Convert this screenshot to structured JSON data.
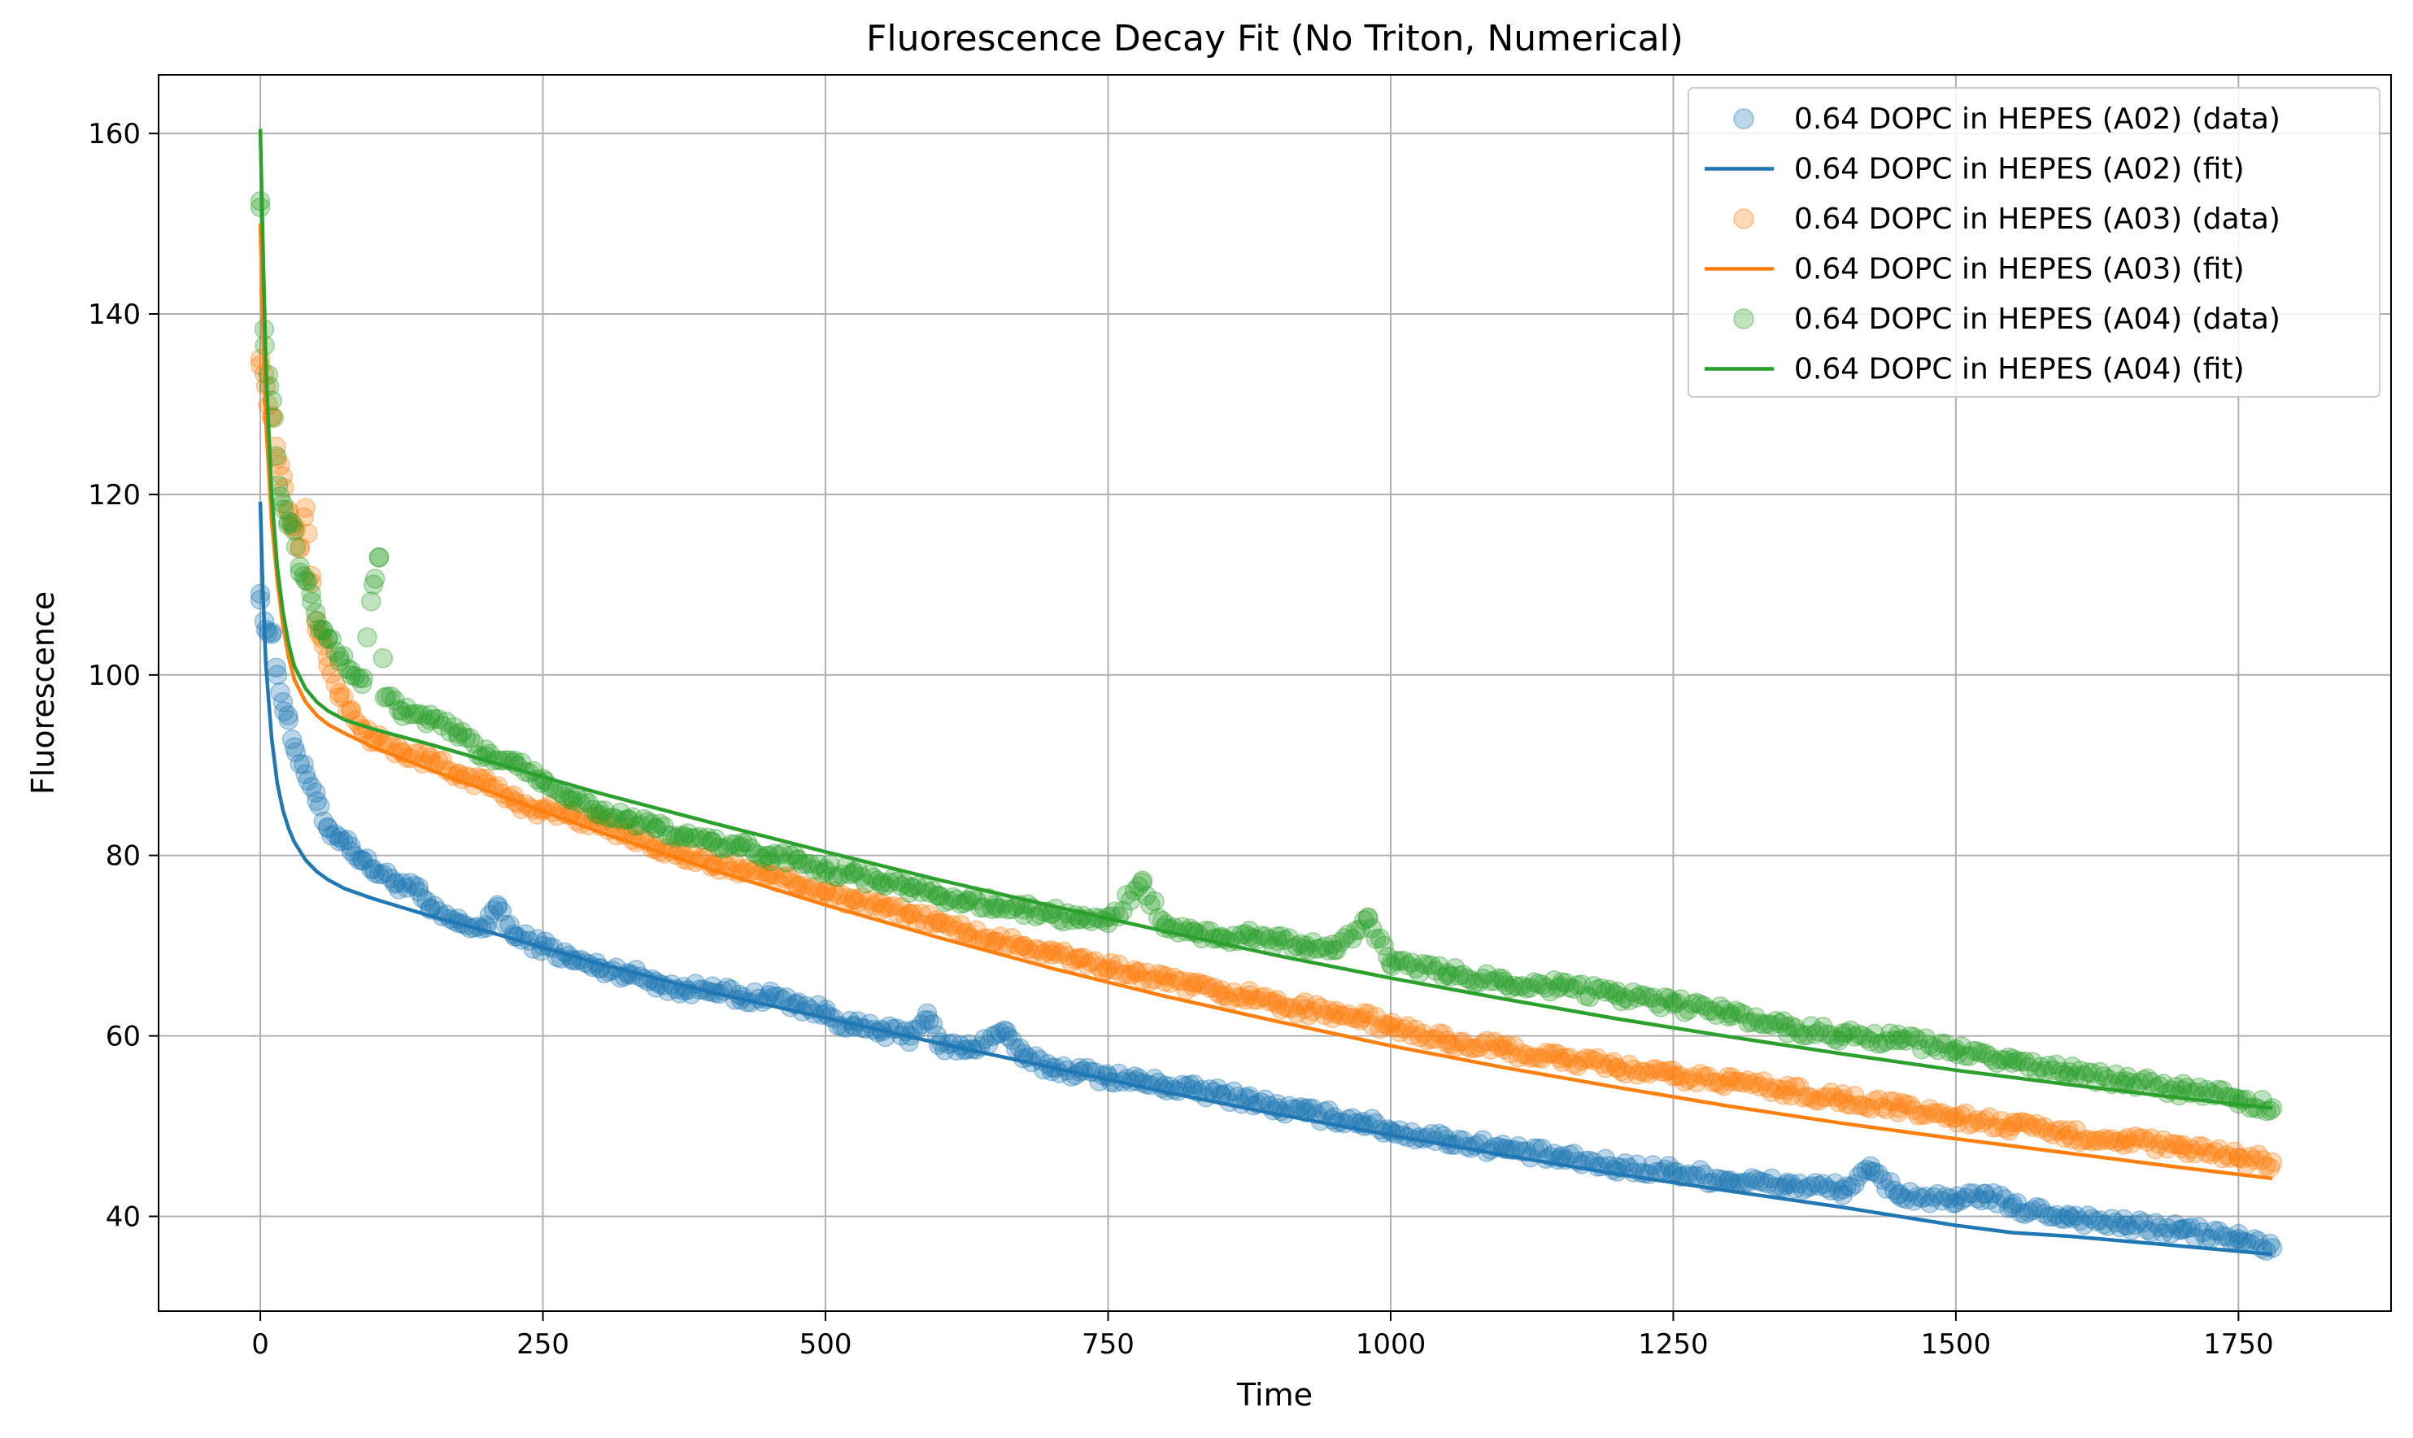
{
  "chart_data": {
    "type": "scatter",
    "title": "Fluorescence Decay Fit (No Triton, Numerical)",
    "xlabel": "Time",
    "ylabel": "Fluorescence",
    "xlim": [
      -90,
      1885
    ],
    "ylim": [
      29.5,
      166.5
    ],
    "xticks": [
      0,
      250,
      500,
      750,
      1000,
      1250,
      1500,
      1750
    ],
    "yticks": [
      40,
      60,
      80,
      100,
      120,
      140,
      160
    ],
    "grid": true,
    "legend_position": "top-right",
    "x_range": [
      0,
      1780
    ],
    "series": [
      {
        "name": "0.64 DOPC in HEPES (A02) (data)",
        "kind": "scatter",
        "color": "#1f77b4",
        "x": [
          0,
          5,
          10,
          15,
          20,
          25,
          30,
          40,
          50,
          60,
          70,
          80,
          90,
          100,
          120,
          140,
          150,
          175,
          200,
          210,
          225,
          250,
          275,
          300,
          325,
          350,
          375,
          400,
          425,
          450,
          475,
          500,
          525,
          550,
          575,
          590,
          600,
          625,
          660,
          675,
          700,
          725,
          750,
          775,
          800,
          825,
          850,
          875,
          900,
          925,
          950,
          975,
          1000,
          1050,
          1100,
          1150,
          1200,
          1250,
          1300,
          1350,
          1400,
          1425,
          1450,
          1500,
          1525,
          1550,
          1600,
          1650,
          1700,
          1750,
          1780
        ],
        "y": [
          109,
          105,
          104.5,
          100,
          97,
          95,
          92,
          89,
          86,
          83,
          82,
          81,
          79.5,
          78.5,
          77,
          76,
          74,
          72.5,
          72,
          74.5,
          71,
          70,
          68.5,
          67.5,
          67,
          66,
          65,
          65.5,
          64,
          64.5,
          63.5,
          62.5,
          61,
          60.5,
          60,
          62.5,
          59,
          58.5,
          60.5,
          57.5,
          56.5,
          56,
          55.5,
          55,
          54.5,
          54,
          53.5,
          53,
          52,
          51.5,
          51,
          50.5,
          49.5,
          48.5,
          47.5,
          46.5,
          45.5,
          45,
          44,
          43.5,
          43,
          45,
          42.5,
          41.5,
          42.5,
          41,
          40,
          39,
          38.5,
          37.5,
          36.5
        ]
      },
      {
        "name": "0.64 DOPC in HEPES (A02) (fit)",
        "kind": "line",
        "color": "#1f77b4",
        "x": [
          0,
          2,
          5,
          10,
          15,
          20,
          25,
          30,
          40,
          50,
          60,
          75,
          100,
          150,
          200,
          300,
          400,
          500,
          600,
          700,
          800,
          900,
          1000,
          1100,
          1200,
          1300,
          1400,
          1500,
          1550,
          1600,
          1700,
          1780
        ],
        "y": [
          119.2,
          110,
          101,
          93,
          88,
          85,
          83,
          81.5,
          79.5,
          78.2,
          77.3,
          76.3,
          75.2,
          73.3,
          71.6,
          68,
          64.8,
          62,
          59.2,
          56.5,
          53.8,
          51.3,
          49,
          46.8,
          44.7,
          42.8,
          41,
          39,
          38.2,
          37.8,
          36.7,
          35.8
        ]
      },
      {
        "name": "0.64 DOPC in HEPES (A03) (data)",
        "kind": "scatter",
        "color": "#ff7f0e",
        "x": [
          0,
          5,
          10,
          15,
          20,
          25,
          30,
          35,
          40,
          45,
          50,
          55,
          60,
          70,
          80,
          90,
          100,
          125,
          150,
          175,
          200,
          225,
          250,
          275,
          300,
          325,
          350,
          375,
          400,
          425,
          450,
          475,
          500,
          525,
          550,
          575,
          600,
          625,
          650,
          675,
          700,
          725,
          750,
          775,
          800,
          825,
          850,
          875,
          900,
          925,
          950,
          975,
          1000,
          1050,
          1100,
          1150,
          1200,
          1250,
          1300,
          1350,
          1400,
          1450,
          1500,
          1550,
          1600,
          1650,
          1700,
          1750,
          1780
        ],
        "y": [
          135,
          132,
          128.5,
          124,
          122,
          118,
          116.5,
          114,
          118.5,
          111,
          105,
          104,
          101,
          98,
          96,
          94,
          93,
          91.5,
          90.5,
          89,
          88,
          86,
          85,
          84.5,
          83.5,
          82.5,
          81,
          80,
          79,
          78.5,
          78,
          76.5,
          76,
          75,
          74,
          73.5,
          72.5,
          71.5,
          70.5,
          70,
          69,
          68.5,
          67.5,
          67,
          66,
          65.5,
          64.5,
          64.5,
          63.5,
          63,
          62.5,
          62,
          61,
          59.5,
          58.5,
          57.5,
          56.5,
          55.5,
          55,
          54,
          53,
          52,
          51,
          50,
          49,
          48.5,
          47.5,
          46.5,
          46
        ]
      },
      {
        "name": "0.64 DOPC in HEPES (A03) (fit)",
        "kind": "line",
        "color": "#ff7f0e",
        "x": [
          0,
          2,
          5,
          10,
          15,
          20,
          25,
          30,
          40,
          50,
          60,
          75,
          100,
          150,
          200,
          300,
          400,
          500,
          600,
          700,
          800,
          900,
          1000,
          1100,
          1200,
          1300,
          1400,
          1500,
          1600,
          1700,
          1780
        ],
        "y": [
          150,
          140,
          128,
          117,
          110.5,
          105.5,
          102,
          99.5,
          97,
          95.5,
          94.5,
          93.5,
          92,
          89.5,
          87.2,
          82.6,
          78.4,
          74.5,
          70.9,
          67.5,
          64.4,
          61.6,
          58.9,
          56.5,
          54.3,
          52.2,
          50.3,
          48.6,
          47,
          45.4,
          44.2
        ]
      },
      {
        "name": "0.64 DOPC in HEPES (A04) (data)",
        "kind": "scatter",
        "color": "#2ca02c",
        "x": [
          0,
          4,
          8,
          12,
          16,
          20,
          25,
          30,
          35,
          40,
          45,
          50,
          55,
          60,
          70,
          80,
          90,
          100,
          105,
          110,
          125,
          150,
          175,
          200,
          225,
          250,
          275,
          300,
          325,
          350,
          375,
          400,
          425,
          450,
          475,
          500,
          525,
          550,
          575,
          600,
          625,
          650,
          675,
          700,
          725,
          750,
          780,
          800,
          825,
          850,
          875,
          900,
          925,
          950,
          980,
          1000,
          1050,
          1100,
          1150,
          1200,
          1250,
          1300,
          1350,
          1400,
          1450,
          1500,
          1550,
          1600,
          1650,
          1700,
          1750,
          1780
        ],
        "y": [
          152.5,
          136.5,
          132,
          128.5,
          121,
          119,
          117,
          116,
          112,
          110.5,
          109,
          106,
          105,
          104,
          102,
          100.5,
          99,
          110,
          113,
          97.5,
          96,
          95,
          93.5,
          91,
          90.5,
          88.5,
          86.5,
          85,
          84,
          83,
          82,
          81.5,
          81,
          80,
          79.5,
          78.5,
          78,
          77,
          76.5,
          75.5,
          75,
          74.5,
          74,
          73.5,
          73,
          72.5,
          77,
          72,
          71.5,
          71,
          71,
          70.5,
          70,
          69.5,
          73,
          68,
          67,
          66,
          65.5,
          64.5,
          63.5,
          62.5,
          61,
          60,
          59.5,
          58.5,
          57,
          56,
          55,
          54,
          53,
          52
        ]
      },
      {
        "name": "0.64 DOPC in HEPES (A04) (fit)",
        "kind": "line",
        "color": "#2ca02c",
        "x": [
          0,
          2,
          5,
          10,
          15,
          20,
          25,
          30,
          40,
          50,
          60,
          75,
          100,
          150,
          200,
          300,
          400,
          500,
          600,
          700,
          800,
          900,
          1000,
          1100,
          1200,
          1300,
          1400,
          1500,
          1600,
          1700,
          1780
        ],
        "y": [
          160.5,
          149,
          134,
          120,
          112,
          107,
          103.5,
          101,
          98.5,
          97,
          96,
          95,
          94,
          92.3,
          90.5,
          86.9,
          83.6,
          80.4,
          77.3,
          74.4,
          71.6,
          68.9,
          66.4,
          64.1,
          61.9,
          59.9,
          58,
          56.2,
          54.6,
          53.1,
          52
        ]
      }
    ]
  }
}
